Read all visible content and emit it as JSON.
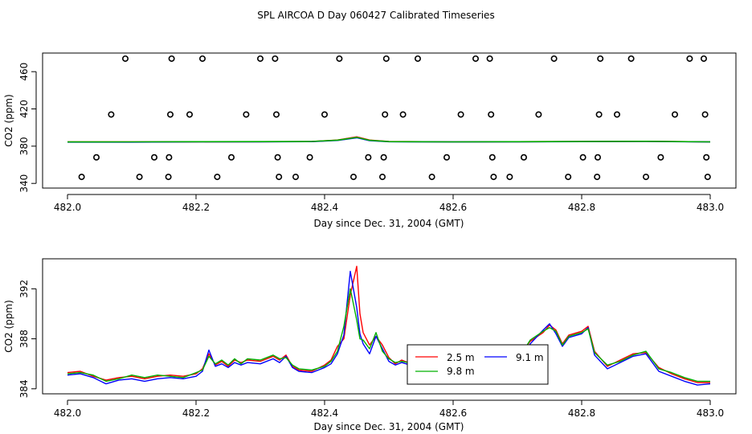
{
  "figure": {
    "title": "SPL AIRCOA D  Day 060427  Calibrated Timeseries"
  },
  "colors": {
    "red": "#ff0000",
    "green": "#00b000",
    "blue": "#0000ff",
    "axis": "#000000",
    "background": "#ffffff"
  },
  "chart_data": [
    {
      "type": "scatter",
      "xlabel": "Day since Dec. 31, 2004 (GMT)",
      "ylabel": "CO2 (ppm)",
      "xlim": [
        482.0,
        483.0
      ],
      "ylim": [
        335,
        480
      ],
      "xticks": [
        "482.0",
        "482.2",
        "482.4",
        "482.6",
        "482.8",
        "483.0"
      ],
      "yticks": [
        "340",
        "380",
        "420",
        "460"
      ],
      "grid": false,
      "series": [
        {
          "marker": "open-circle",
          "points": [
            [
              482.022,
              347
            ],
            [
              482.045,
              368
            ],
            [
              482.068,
              414
            ],
            [
              482.09,
              474
            ],
            [
              482.112,
              347
            ],
            [
              482.135,
              368
            ],
            [
              482.157,
              347
            ],
            [
              482.158,
              368
            ],
            [
              482.16,
              414
            ],
            [
              482.162,
              474
            ],
            [
              482.19,
              414
            ],
            [
              482.21,
              474
            ],
            [
              482.233,
              347
            ],
            [
              482.255,
              368
            ],
            [
              482.278,
              414
            ],
            [
              482.3,
              474
            ],
            [
              482.323,
              474
            ],
            [
              482.325,
              414
            ],
            [
              482.327,
              368
            ],
            [
              482.329,
              347
            ],
            [
              482.355,
              347
            ],
            [
              482.377,
              368
            ],
            [
              482.4,
              414
            ],
            [
              482.423,
              474
            ],
            [
              482.445,
              347
            ],
            [
              482.468,
              368
            ],
            [
              482.49,
              347
            ],
            [
              482.492,
              368
            ],
            [
              482.494,
              414
            ],
            [
              482.496,
              474
            ],
            [
              482.522,
              414
            ],
            [
              482.545,
              474
            ],
            [
              482.567,
              347
            ],
            [
              482.59,
              368
            ],
            [
              482.612,
              414
            ],
            [
              482.635,
              474
            ],
            [
              482.657,
              474
            ],
            [
              482.659,
              414
            ],
            [
              482.661,
              368
            ],
            [
              482.663,
              347
            ],
            [
              482.688,
              347
            ],
            [
              482.71,
              368
            ],
            [
              482.733,
              414
            ],
            [
              482.757,
              474
            ],
            [
              482.779,
              347
            ],
            [
              482.802,
              368
            ],
            [
              482.824,
              347
            ],
            [
              482.825,
              368
            ],
            [
              482.827,
              414
            ],
            [
              482.829,
              474
            ],
            [
              482.855,
              414
            ],
            [
              482.877,
              474
            ],
            [
              482.9,
              347
            ],
            [
              482.923,
              368
            ],
            [
              482.945,
              414
            ],
            [
              482.968,
              474
            ],
            [
              482.99,
              474
            ],
            [
              482.992,
              414
            ],
            [
              482.994,
              368
            ],
            [
              482.996,
              347
            ]
          ]
        },
        {
          "name": "2.5 m",
          "color": "#ff0000",
          "points": [
            [
              482.0,
              384.5
            ],
            [
              482.1,
              384.5
            ],
            [
              482.2,
              384.7
            ],
            [
              482.3,
              384.8
            ],
            [
              482.38,
              385.0
            ],
            [
              482.42,
              386.5
            ],
            [
              482.45,
              390.0
            ],
            [
              482.47,
              386.5
            ],
            [
              482.5,
              385.0
            ],
            [
              482.6,
              384.6
            ],
            [
              482.7,
              384.8
            ],
            [
              482.8,
              385.0
            ],
            [
              482.9,
              385.2
            ],
            [
              483.0,
              384.6
            ]
          ]
        },
        {
          "name": "9.1 m",
          "color": "#0000ff",
          "points": [
            [
              482.0,
              384.4
            ],
            [
              482.1,
              384.4
            ],
            [
              482.2,
              384.6
            ],
            [
              482.3,
              384.7
            ],
            [
              482.38,
              384.9
            ],
            [
              482.42,
              386.2
            ],
            [
              482.45,
              389.0
            ],
            [
              482.47,
              386.0
            ],
            [
              482.5,
              384.8
            ],
            [
              482.6,
              384.5
            ],
            [
              482.7,
              384.7
            ],
            [
              482.8,
              384.9
            ],
            [
              482.9,
              385.1
            ],
            [
              483.0,
              384.5
            ]
          ]
        },
        {
          "name": "9.8 m",
          "color": "#00b000",
          "points": [
            [
              482.0,
              384.5
            ],
            [
              482.1,
              384.6
            ],
            [
              482.2,
              384.8
            ],
            [
              482.3,
              384.9
            ],
            [
              482.38,
              385.1
            ],
            [
              482.42,
              386.4
            ],
            [
              482.45,
              389.5
            ],
            [
              482.47,
              386.3
            ],
            [
              482.5,
              384.9
            ],
            [
              482.6,
              384.6
            ],
            [
              482.7,
              384.8
            ],
            [
              482.8,
              385.0
            ],
            [
              482.9,
              385.2
            ],
            [
              483.0,
              384.6
            ]
          ]
        }
      ]
    },
    {
      "type": "line",
      "xlabel": "Day since Dec. 31, 2004 (GMT)",
      "ylabel": "CO2 (ppm)",
      "xlim": [
        482.0,
        483.0
      ],
      "ylim": [
        383.6,
        394.4
      ],
      "xticks": [
        "482.0",
        "482.2",
        "482.4",
        "482.6",
        "482.8",
        "483.0"
      ],
      "yticks": [
        "384",
        "388",
        "392"
      ],
      "grid": false,
      "legend": "center-right",
      "series": [
        {
          "name": "2.5 m",
          "color": "#ff0000",
          "x": [
            482.0,
            482.02,
            482.04,
            482.06,
            482.08,
            482.1,
            482.12,
            482.14,
            482.16,
            482.18,
            482.2,
            482.21,
            482.22,
            482.23,
            482.24,
            482.25,
            482.26,
            482.27,
            482.28,
            482.3,
            482.32,
            482.33,
            482.34,
            482.35,
            482.36,
            482.38,
            482.4,
            482.41,
            482.42,
            482.43,
            482.44,
            482.45,
            482.455,
            482.46,
            482.47,
            482.48,
            482.49,
            482.5,
            482.51,
            482.52,
            482.54,
            482.56,
            482.58,
            482.6,
            482.62,
            482.64,
            482.66,
            482.68,
            482.7,
            482.72,
            482.74,
            482.75,
            482.76,
            482.77,
            482.78,
            482.8,
            482.81,
            482.82,
            482.84,
            482.86,
            482.88,
            482.9,
            482.92,
            482.94,
            482.96,
            482.98,
            483.0
          ],
          "y": [
            385.3,
            385.4,
            385.0,
            384.7,
            384.9,
            385.0,
            384.8,
            385.0,
            385.1,
            385.0,
            385.2,
            385.6,
            386.8,
            385.9,
            386.2,
            385.8,
            386.3,
            386.1,
            386.3,
            386.2,
            386.6,
            386.3,
            386.7,
            385.8,
            385.5,
            385.4,
            385.9,
            386.3,
            387.4,
            388.0,
            391.5,
            393.8,
            390.0,
            388.5,
            387.5,
            388.2,
            387.5,
            386.5,
            386.0,
            386.3,
            385.9,
            385.7,
            386.0,
            385.8,
            386.0,
            386.2,
            385.3,
            385.9,
            386.5,
            387.8,
            388.5,
            389.1,
            388.7,
            387.6,
            388.3,
            388.6,
            389.0,
            387.0,
            385.8,
            386.3,
            386.8,
            386.9,
            385.7,
            385.2,
            384.8,
            384.5,
            384.5
          ]
        },
        {
          "name": "9.1 m",
          "color": "#0000ff",
          "x": [
            482.0,
            482.02,
            482.04,
            482.06,
            482.08,
            482.1,
            482.12,
            482.14,
            482.16,
            482.18,
            482.2,
            482.21,
            482.22,
            482.23,
            482.24,
            482.25,
            482.26,
            482.27,
            482.28,
            482.3,
            482.32,
            482.33,
            482.34,
            482.35,
            482.36,
            482.38,
            482.4,
            482.41,
            482.42,
            482.43,
            482.44,
            482.45,
            482.455,
            482.46,
            482.47,
            482.48,
            482.49,
            482.5,
            482.51,
            482.52,
            482.54,
            482.56,
            482.58,
            482.6,
            482.62,
            482.64,
            482.66,
            482.68,
            482.7,
            482.72,
            482.74,
            482.75,
            482.76,
            482.77,
            482.78,
            482.8,
            482.81,
            482.82,
            482.84,
            482.86,
            482.88,
            482.9,
            482.92,
            482.94,
            482.96,
            482.98,
            483.0
          ],
          "y": [
            385.1,
            385.2,
            384.9,
            384.4,
            384.7,
            384.8,
            384.6,
            384.8,
            384.9,
            384.8,
            385.0,
            385.4,
            387.1,
            385.8,
            386.0,
            385.7,
            386.1,
            385.9,
            386.1,
            386.0,
            386.4,
            386.1,
            386.6,
            385.7,
            385.4,
            385.3,
            385.7,
            386.0,
            386.8,
            388.3,
            393.4,
            390.5,
            388.4,
            387.6,
            386.8,
            388.2,
            387.2,
            386.2,
            385.9,
            386.1,
            385.8,
            385.5,
            385.8,
            385.6,
            385.9,
            386.0,
            385.1,
            385.6,
            386.1,
            387.6,
            388.7,
            389.2,
            388.4,
            387.4,
            388.1,
            388.4,
            388.9,
            386.7,
            385.6,
            386.1,
            386.6,
            386.8,
            385.4,
            385.0,
            384.6,
            384.3,
            384.4
          ]
        },
        {
          "name": "9.8 m",
          "color": "#00b000",
          "x": [
            482.0,
            482.02,
            482.04,
            482.06,
            482.08,
            482.1,
            482.12,
            482.14,
            482.16,
            482.18,
            482.2,
            482.21,
            482.22,
            482.23,
            482.24,
            482.25,
            482.26,
            482.27,
            482.28,
            482.3,
            482.32,
            482.33,
            482.34,
            482.35,
            482.36,
            482.38,
            482.4,
            482.41,
            482.42,
            482.43,
            482.44,
            482.45,
            482.455,
            482.46,
            482.47,
            482.48,
            482.49,
            482.5,
            482.51,
            482.52,
            482.54,
            482.56,
            482.58,
            482.6,
            482.62,
            482.64,
            482.66,
            482.68,
            482.7,
            482.72,
            482.74,
            482.75,
            482.76,
            482.77,
            482.78,
            482.8,
            482.81,
            482.82,
            482.84,
            482.86,
            482.88,
            482.9,
            482.92,
            482.94,
            482.96,
            482.98,
            483.0
          ],
          "y": [
            385.2,
            385.3,
            385.1,
            384.6,
            384.8,
            385.1,
            384.9,
            385.1,
            385.0,
            384.9,
            385.3,
            385.5,
            386.6,
            386.0,
            386.3,
            385.9,
            386.4,
            386.0,
            386.4,
            386.3,
            386.7,
            386.4,
            386.5,
            385.9,
            385.6,
            385.5,
            385.8,
            386.2,
            387.0,
            389.0,
            392.0,
            389.5,
            388.0,
            387.9,
            387.2,
            388.5,
            387.0,
            386.4,
            386.1,
            386.2,
            386.0,
            385.8,
            386.1,
            385.9,
            386.1,
            386.1,
            385.4,
            385.8,
            386.3,
            387.9,
            388.6,
            388.9,
            388.6,
            387.5,
            388.2,
            388.5,
            388.8,
            386.9,
            385.9,
            386.2,
            386.7,
            387.0,
            385.6,
            385.3,
            384.9,
            384.6,
            384.6
          ]
        }
      ]
    }
  ]
}
